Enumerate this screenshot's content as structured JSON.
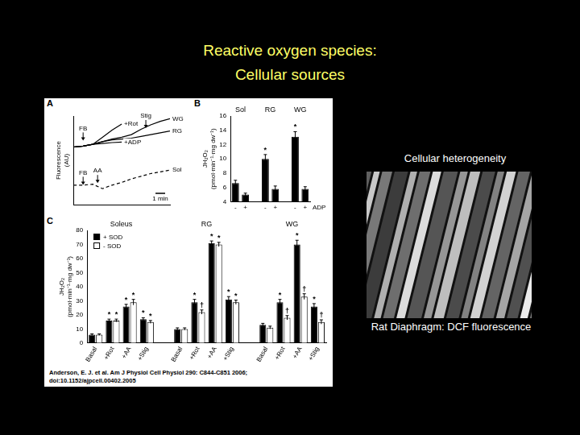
{
  "slide": {
    "title": [
      "Reactive oxygen species:",
      "Cellular sources"
    ],
    "image_caption_top": "Cellular heterogeneity",
    "image_caption_bottom": "Rat Diaphragm: DCF fluorescence",
    "citation": [
      "Anderson, E. J. et al. Am J Physiol Cell Physiol 290: C844-C851 2006;",
      "doi:10.1152/ajpcell.00402.2005"
    ]
  },
  "chart_data": [
    {
      "panel": "A",
      "type": "line",
      "y_label": "Fluorescence (AU)",
      "x": [
        0,
        1,
        2,
        3,
        4,
        5,
        6,
        7,
        8,
        9,
        10
      ],
      "xlim": [
        0,
        10
      ],
      "ylim": [
        0,
        10
      ],
      "tick_labels": false,
      "grid": false,
      "series": [
        {
          "name": "+Rot",
          "color": "#000000",
          "values": [
            6.5,
            6.6,
            6.8,
            7.6,
            8.4,
            9.1,
            null,
            null,
            null,
            null,
            null
          ]
        },
        {
          "name": "+ADP",
          "color": "#000000",
          "values": [
            6.5,
            6.6,
            6.8,
            6.9,
            7.0,
            7.05,
            null,
            null,
            null,
            null,
            null
          ]
        },
        {
          "name": "WG",
          "color": "#000000",
          "values": [
            6.5,
            6.6,
            6.8,
            7.1,
            7.4,
            7.6,
            7.9,
            8.5,
            9.0,
            9.4,
            9.7
          ]
        },
        {
          "name": "RG",
          "color": "#000000",
          "values": [
            6.5,
            6.6,
            6.8,
            7.1,
            7.3,
            7.4,
            7.5,
            7.7,
            7.9,
            8.1,
            8.3
          ]
        },
        {
          "name": "Sol",
          "color": "#000000",
          "line_style": "dashed",
          "values": [
            2.2,
            2.2,
            2.3,
            1.8,
            2.2,
            2.5,
            2.9,
            3.2,
            3.5,
            3.7,
            3.9
          ]
        }
      ],
      "annotations": [
        {
          "text": "FB",
          "x": 1,
          "y": 8.6
        },
        {
          "text": "Stig",
          "x": 7.5,
          "y": 10
        },
        {
          "text": "FB",
          "x": 1,
          "y": 3.6
        },
        {
          "text": "AA",
          "x": 2.5,
          "y": 3.8
        }
      ],
      "scale_bar": {
        "label": "1 min",
        "length": 1
      }
    },
    {
      "panel": "B",
      "type": "bar",
      "y_label": "JH₂O₂ (pmol·min⁻¹·mg dw⁻¹)",
      "x_label": "ADP",
      "categories": [
        "-",
        "+",
        null,
        "-",
        "+",
        null,
        "-",
        "+"
      ],
      "groups": [
        "Sol",
        "RG",
        "WG"
      ],
      "values": [
        6.6,
        5.0,
        null,
        10.0,
        5.8,
        null,
        13.1,
        5.8
      ],
      "errors": [
        0.4,
        0.2,
        null,
        0.6,
        0.4,
        null,
        0.7,
        0.3
      ],
      "color": "#000000",
      "ylim": [
        4,
        16
      ],
      "yticks": [
        4,
        6,
        8,
        10,
        12,
        14,
        16
      ],
      "grid": false,
      "annotations": [
        {
          "category_index": 3,
          "text": "*"
        },
        {
          "category_index": 6,
          "text": "*"
        }
      ]
    },
    {
      "panel": "C",
      "type": "bar",
      "y_label": "JH₂O₂ (pmol·min⁻¹·mg dw⁻¹)",
      "categories": [
        "Basal",
        "+Rot",
        "+AA",
        "+Stig",
        null,
        "Basal",
        "+Rot",
        "+AA",
        "+Stig",
        null,
        "Basal",
        "+Rot",
        "+AA",
        "+Stig"
      ],
      "groups": [
        "Soleus",
        "RG",
        "WG"
      ],
      "series": [
        {
          "name": "+ SOD",
          "color": "#000000",
          "values": [
            6,
            16,
            26,
            17,
            null,
            10,
            29,
            71,
            31,
            null,
            13,
            29,
            70,
            26
          ],
          "errors": [
            0.5,
            1,
            1.5,
            1,
            null,
            0.8,
            2,
            1.5,
            2,
            null,
            1,
            2,
            3,
            2
          ]
        },
        {
          "name": "- SOD",
          "color": "#ffffff",
          "values": [
            6,
            16,
            29,
            15,
            null,
            10,
            22,
            70,
            29,
            null,
            11,
            18,
            33,
            15
          ],
          "errors": [
            0.5,
            1,
            2,
            1,
            null,
            0.8,
            1.5,
            1.5,
            1.5,
            null,
            1,
            1.5,
            2,
            1.5
          ]
        }
      ],
      "ylim": [
        0,
        80
      ],
      "yticks": [
        0,
        10,
        20,
        30,
        40,
        50,
        60,
        70,
        80
      ],
      "grid": false,
      "legend": "top-left",
      "annotations": [
        {
          "category_index": 1,
          "series": 0,
          "text": "*"
        },
        {
          "category_index": 1,
          "series": 1,
          "text": "*"
        },
        {
          "category_index": 2,
          "series": 0,
          "text": "*"
        },
        {
          "category_index": 2,
          "series": 1,
          "text": "*"
        },
        {
          "category_index": 3,
          "series": 0,
          "text": "*"
        },
        {
          "category_index": 3,
          "series": 1,
          "text": "*"
        },
        {
          "category_index": 6,
          "series": 0,
          "text": "*"
        },
        {
          "category_index": 6,
          "series": 1,
          "text": "†"
        },
        {
          "category_index": 7,
          "series": 0,
          "text": "*"
        },
        {
          "category_index": 7,
          "series": 1,
          "text": "*"
        },
        {
          "category_index": 8,
          "series": 0,
          "text": "*"
        },
        {
          "category_index": 8,
          "series": 1,
          "text": "*"
        },
        {
          "category_index": 11,
          "series": 0,
          "text": "*"
        },
        {
          "category_index": 11,
          "series": 1,
          "text": "†"
        },
        {
          "category_index": 12,
          "series": 0,
          "text": "*"
        },
        {
          "category_index": 12,
          "series": 1,
          "text": "†"
        },
        {
          "category_index": 13,
          "series": 0,
          "text": "*"
        },
        {
          "category_index": 13,
          "series": 1,
          "text": "†"
        }
      ]
    }
  ]
}
